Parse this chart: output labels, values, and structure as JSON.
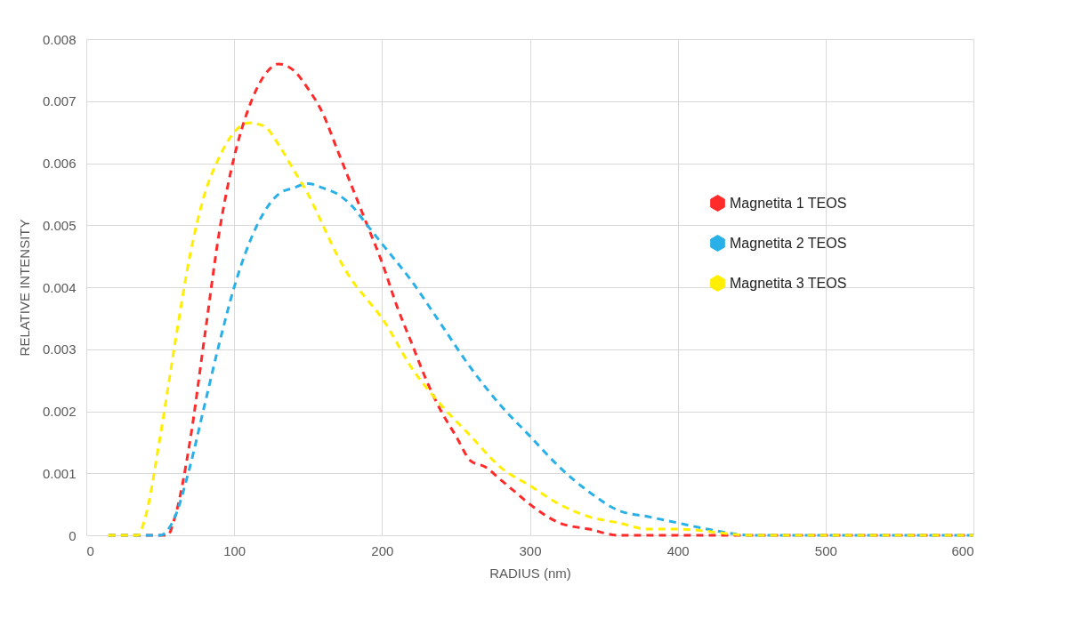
{
  "chart_data": {
    "type": "line",
    "xlabel": "RADIUS (nm)",
    "ylabel": "RELATIVE INTENSITY",
    "xlim": [
      0,
      600
    ],
    "xticks": [
      0,
      100,
      200,
      300,
      400,
      500,
      600
    ],
    "ylim": [
      0,
      0.008
    ],
    "yticks": [
      0,
      0.001,
      0.002,
      0.003,
      0.004,
      0.005,
      0.006,
      0.007,
      0.008
    ],
    "grid": true,
    "legend": "right",
    "line_style": "dashed",
    "marker": "none",
    "series": [
      {
        "name": "Magnetita 1 TEOS",
        "color": "#ff2a2a",
        "x": [
          15,
          50,
          55,
          60,
          70,
          80,
          90,
          100,
          110,
          120,
          130,
          140,
          150,
          160,
          170,
          180,
          190,
          200,
          210,
          220,
          230,
          240,
          250,
          260,
          270,
          280,
          290,
          300,
          320,
          340,
          360,
          600
        ],
        "values": [
          0,
          0,
          0,
          0.0003,
          0.0015,
          0.0032,
          0.0049,
          0.0061,
          0.0069,
          0.0074,
          0.0076,
          0.0075,
          0.0072,
          0.0068,
          0.0062,
          0.0056,
          0.005,
          0.0044,
          0.0037,
          0.0031,
          0.0025,
          0.002,
          0.0016,
          0.0012,
          0.0011,
          0.0009,
          0.0007,
          0.0005,
          0.0002,
          0.0001,
          0,
          0
        ]
      },
      {
        "name": "Magnetita 2 TEOS",
        "color": "#29b0e8",
        "x": [
          15,
          50,
          60,
          70,
          80,
          90,
          100,
          110,
          120,
          130,
          140,
          150,
          160,
          170,
          180,
          190,
          200,
          220,
          240,
          260,
          280,
          300,
          320,
          340,
          360,
          380,
          400,
          420,
          450,
          600
        ],
        "values": [
          0,
          0,
          0.0003,
          0.0011,
          0.0021,
          0.0031,
          0.004,
          0.0047,
          0.0052,
          0.0055,
          0.0056,
          0.00567,
          0.0056,
          0.0055,
          0.0053,
          0.005,
          0.0047,
          0.0041,
          0.0034,
          0.0027,
          0.0021,
          0.0016,
          0.0011,
          0.0007,
          0.0004,
          0.0003,
          0.0002,
          0.0001,
          0,
          0
        ]
      },
      {
        "name": "Magnetita 3 TEOS",
        "color": "#ffee00",
        "x": [
          15,
          35,
          40,
          50,
          60,
          70,
          80,
          90,
          100,
          110,
          120,
          130,
          140,
          150,
          160,
          170,
          180,
          190,
          200,
          220,
          240,
          260,
          280,
          300,
          320,
          340,
          360,
          380,
          400,
          450,
          600
        ],
        "values": [
          0,
          0,
          0.0003,
          0.0016,
          0.0031,
          0.0045,
          0.0055,
          0.0061,
          0.0065,
          0.00665,
          0.0066,
          0.0063,
          0.0059,
          0.0055,
          0.005,
          0.0045,
          0.0041,
          0.0038,
          0.0035,
          0.0027,
          0.0021,
          0.0016,
          0.0011,
          0.0008,
          0.0005,
          0.0003,
          0.0002,
          0.0001,
          0.0001,
          0,
          0
        ]
      }
    ]
  }
}
